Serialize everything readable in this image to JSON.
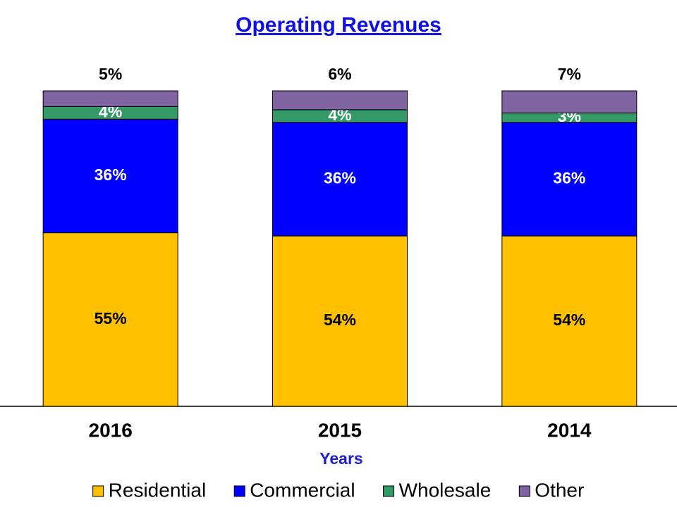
{
  "chart_data": {
    "type": "stacked_bar",
    "title": "Operating Revenues",
    "x_label": "Years",
    "categories": [
      "2016",
      "2015",
      "2014"
    ],
    "ylim": [
      0,
      100
    ],
    "series": [
      {
        "name": "Residential",
        "color": "#FFC000",
        "label_color": "#000000",
        "values": [
          55,
          54,
          54
        ],
        "value_labels": [
          "55%",
          "54%",
          "54%"
        ]
      },
      {
        "name": "Commercial",
        "color": "#0000FF",
        "label_color": "#FFFFFF",
        "values": [
          36,
          36,
          36
        ],
        "value_labels": [
          "36%",
          "36%",
          "36%"
        ]
      },
      {
        "name": "Wholesale",
        "color": "#339966",
        "label_color": "#FFFFFF",
        "values": [
          4,
          4,
          3
        ],
        "value_labels": [
          "4%",
          "4%",
          "3%"
        ]
      },
      {
        "name": "Other",
        "color": "#8064A2",
        "label_color": "#000000",
        "values": [
          5,
          6,
          7
        ],
        "value_labels": [
          "5%",
          "6%",
          "7%"
        ]
      }
    ],
    "legend": "bottom"
  }
}
